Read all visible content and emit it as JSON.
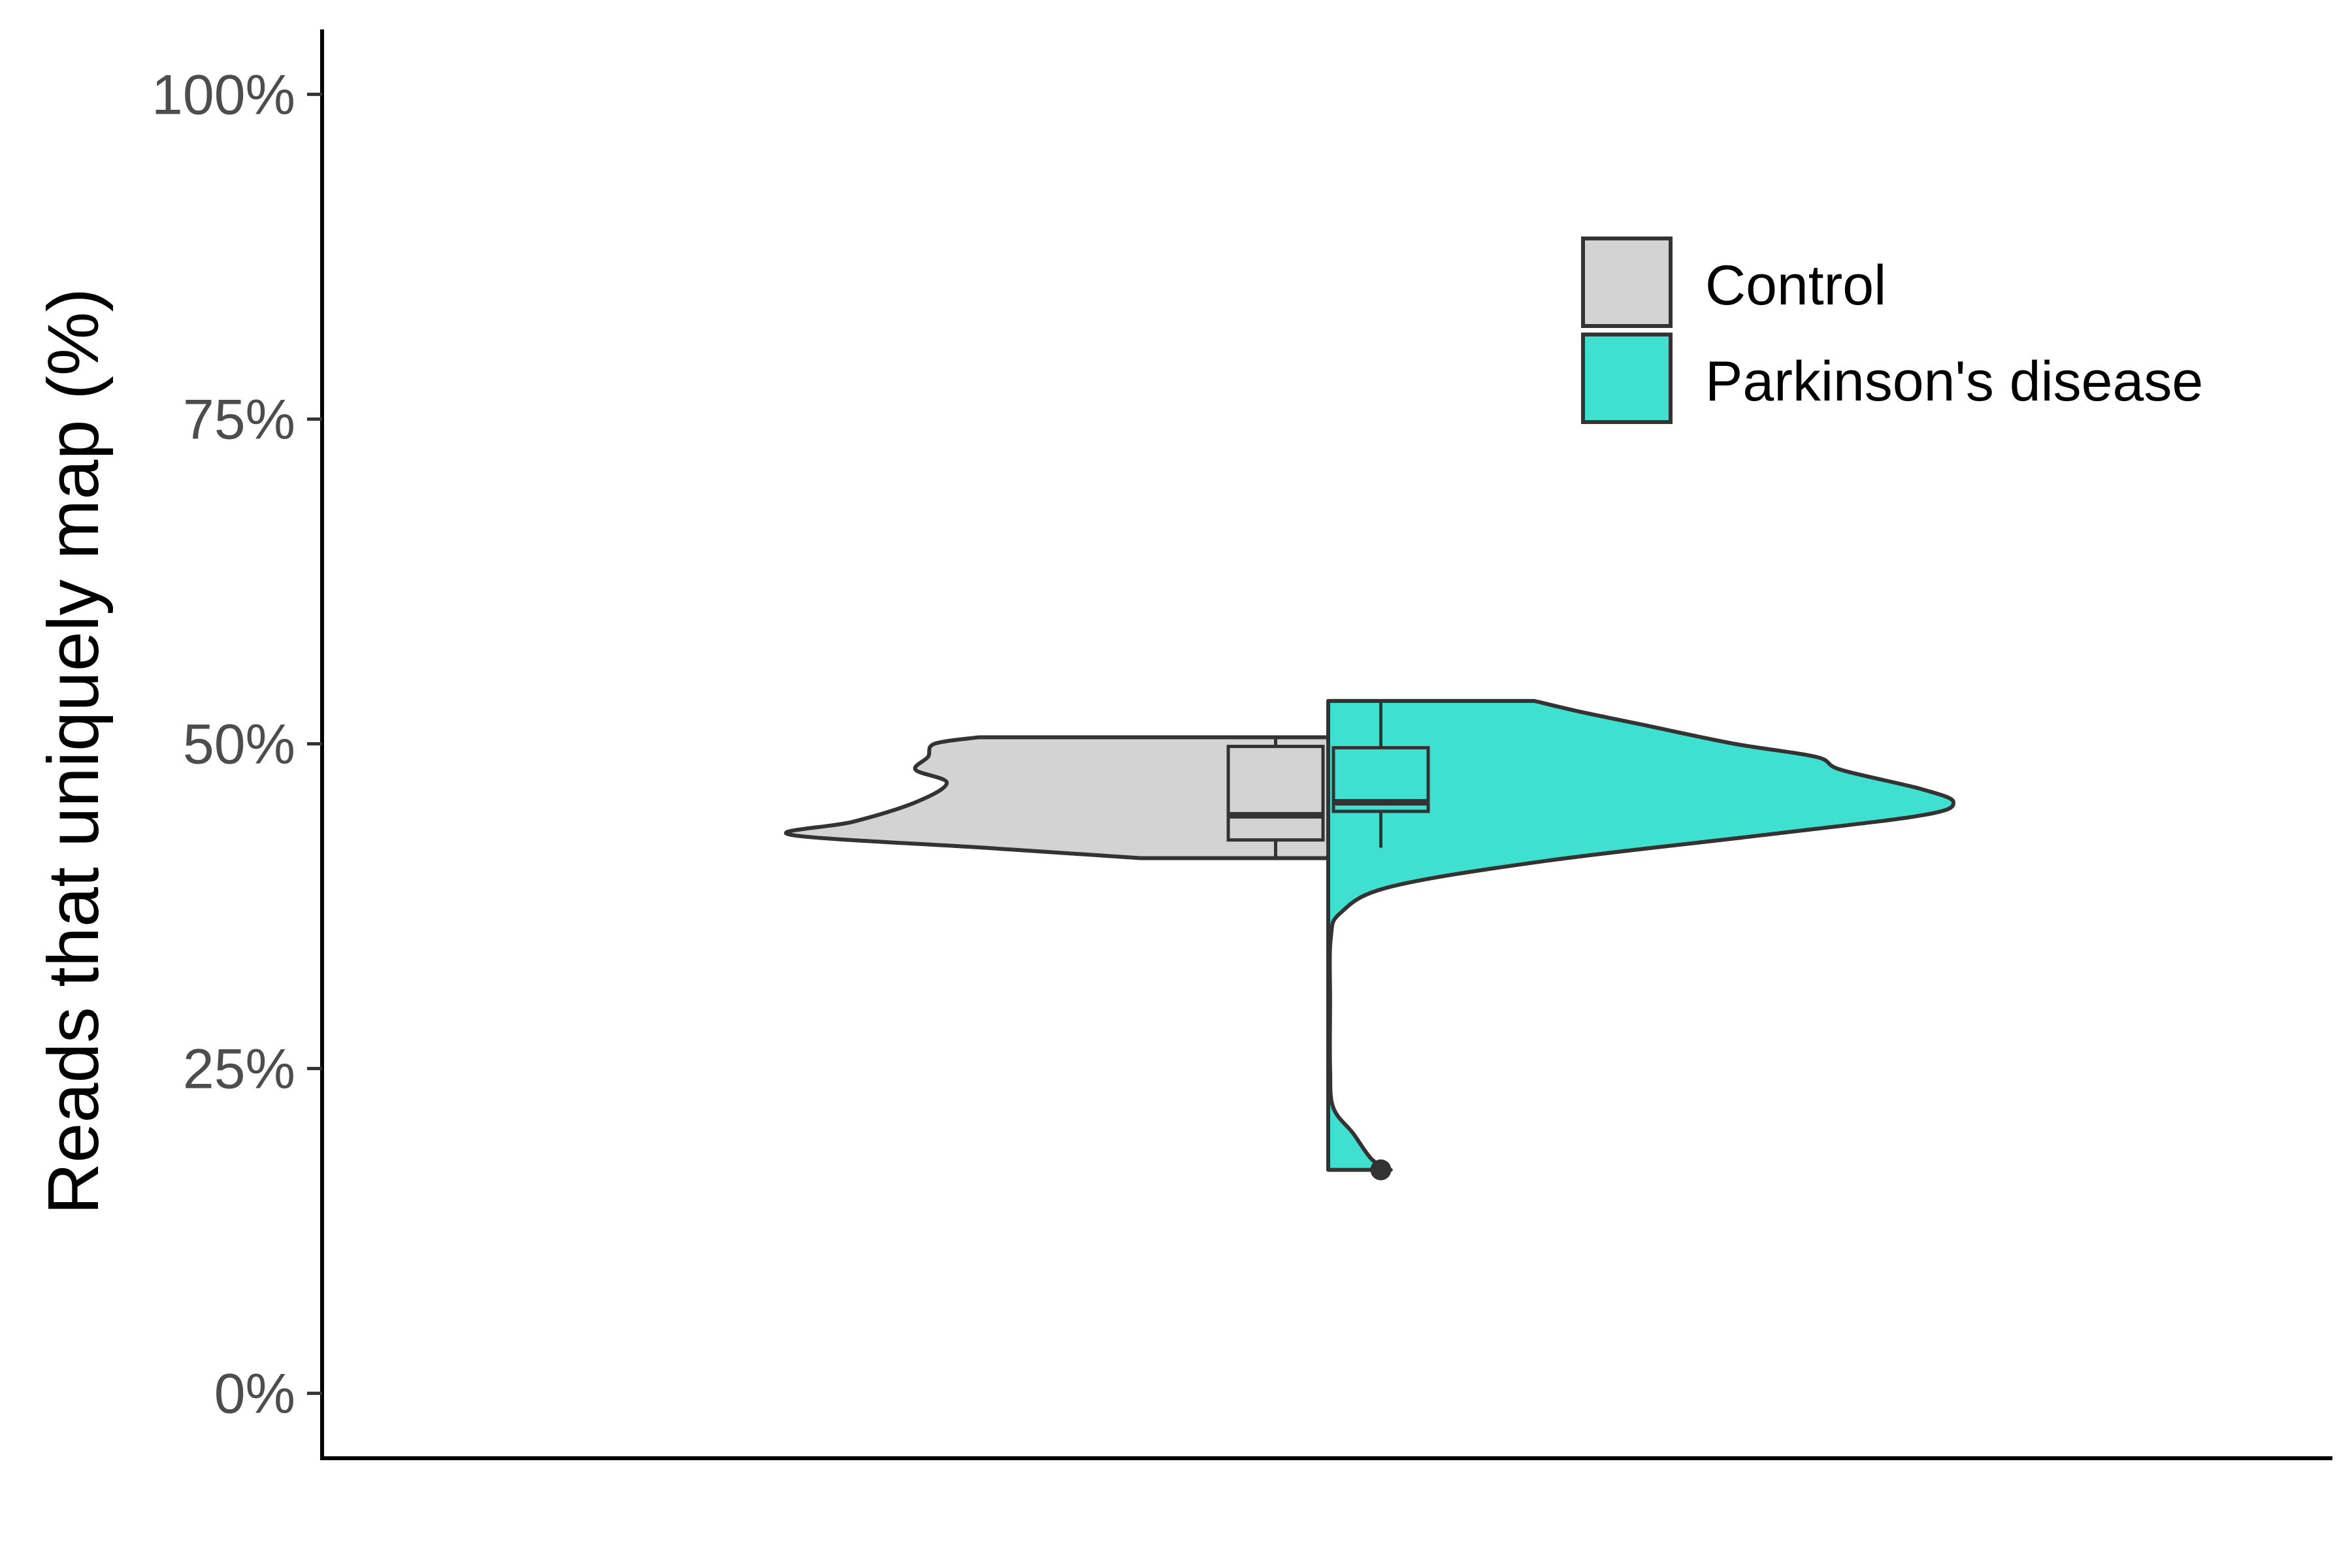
{
  "chart_data": {
    "type": "split-violin",
    "title": "",
    "xlabel": "",
    "ylabel": "Reads that uniquely map (%)",
    "ylim": [
      -0.05,
      1.05
    ],
    "yticks": [
      {
        "value": 0,
        "label": "0%"
      },
      {
        "value": 0.25,
        "label": "25%"
      },
      {
        "value": 0.5,
        "label": "50%"
      },
      {
        "value": 0.75,
        "label": "75%"
      },
      {
        "value": 1.0,
        "label": "100%"
      }
    ],
    "grid": false,
    "legend_position": "top-right",
    "series": [
      {
        "name": "Control",
        "color": "#d3d3d3",
        "side": "left",
        "density": [
          [
            0.412,
            0.3
          ],
          [
            0.42,
            0.55
          ],
          [
            0.43,
            0.86
          ],
          [
            0.44,
            0.76
          ],
          [
            0.455,
            0.66
          ],
          [
            0.47,
            0.61
          ],
          [
            0.48,
            0.66
          ],
          [
            0.49,
            0.64
          ],
          [
            0.5,
            0.63
          ],
          [
            0.505,
            0.56
          ]
        ],
        "box": {
          "min": 0.412,
          "q1": 0.426,
          "median": 0.445,
          "q3": 0.498,
          "max": 0.505
        },
        "outliers": []
      },
      {
        "name": "Parkinson's disease",
        "color": "#40e0d0",
        "side": "right",
        "density": [
          [
            0.172,
            0.1
          ],
          [
            0.18,
            0.07
          ],
          [
            0.2,
            0.04
          ],
          [
            0.22,
            0.008
          ],
          [
            0.25,
            0.003
          ],
          [
            0.3,
            0.003
          ],
          [
            0.35,
            0.004
          ],
          [
            0.37,
            0.02
          ],
          [
            0.39,
            0.1
          ],
          [
            0.41,
            0.35
          ],
          [
            0.43,
            0.7
          ],
          [
            0.445,
            0.95
          ],
          [
            0.455,
            1.0
          ],
          [
            0.465,
            0.95
          ],
          [
            0.48,
            0.82
          ],
          [
            0.49,
            0.78
          ],
          [
            0.5,
            0.65
          ],
          [
            0.515,
            0.5
          ],
          [
            0.525,
            0.4
          ],
          [
            0.533,
            0.33
          ]
        ],
        "box": {
          "min": 0.42,
          "q1": 0.448,
          "median": 0.455,
          "q3": 0.497,
          "max": 0.533
        },
        "outliers": [
          0.172
        ]
      }
    ]
  }
}
